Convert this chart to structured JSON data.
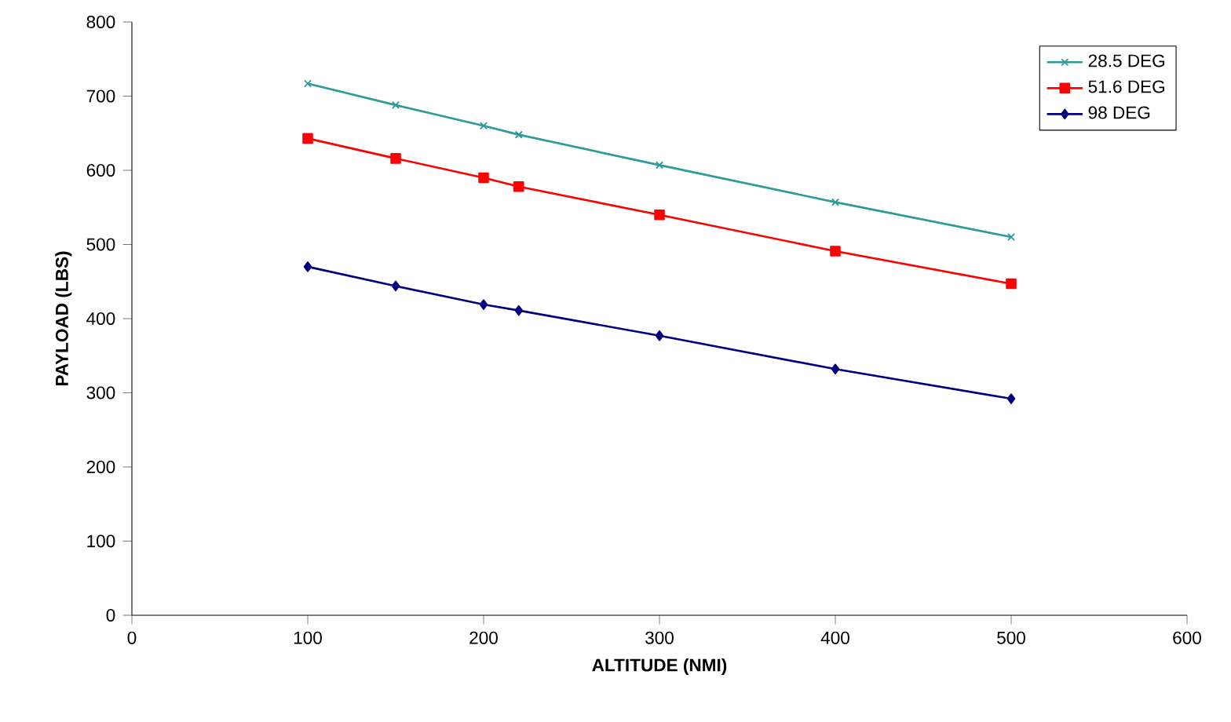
{
  "chart_data": {
    "type": "line",
    "xlabel": "ALTITUDE (NMI)",
    "ylabel": "PAYLOAD (LBS)",
    "x": [
      100,
      150,
      200,
      220,
      300,
      400,
      500
    ],
    "series": [
      {
        "name": "28.5 DEG",
        "color": "#2e9a9a",
        "marker": "cross",
        "values": [
          717,
          688,
          660,
          648,
          607,
          557,
          510
        ]
      },
      {
        "name": "51.6 DEG",
        "color": "#ff0000",
        "marker": "square",
        "values": [
          643,
          616,
          590,
          578,
          540,
          491,
          447
        ]
      },
      {
        "name": "98 DEG",
        "color": "#000080",
        "marker": "diamond",
        "values": [
          470,
          444,
          419,
          411,
          377,
          332,
          292
        ]
      }
    ],
    "xlim": [
      0,
      600
    ],
    "xticks": [
      0,
      100,
      200,
      300,
      400,
      500,
      600
    ],
    "ylim": [
      0,
      800
    ],
    "yticks": [
      0,
      100,
      200,
      300,
      400,
      500,
      600,
      700,
      800
    ],
    "grid": false,
    "legend": "top right",
    "line_style": "solid"
  }
}
